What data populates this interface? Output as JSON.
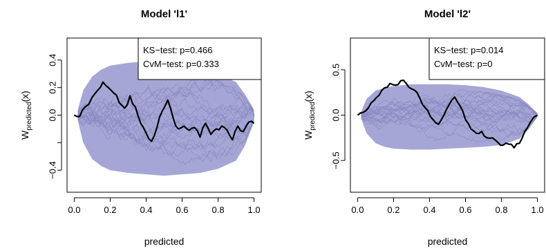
{
  "chart_data": [
    {
      "type": "line",
      "title": "Model 'l1'",
      "xlabel": "predicted",
      "ylabel_main": "W",
      "ylabel_sub": "predicted",
      "ylabel_tail": "(x)",
      "xlim": [
        -0.04,
        1.04
      ],
      "ylim": [
        -0.56,
        0.56
      ],
      "xticks": [
        0.0,
        0.2,
        0.4,
        0.6,
        0.8,
        1.0
      ],
      "xtick_labels": [
        "0.0",
        "0.2",
        "0.4",
        "0.6",
        "0.8",
        "1.0"
      ],
      "yticks": [
        -0.4,
        -0.2,
        0.0,
        0.2,
        0.4
      ],
      "ytick_labels": [
        "−0.4",
        "",
        "0.0",
        "0.2",
        "0.4"
      ],
      "annotations": [
        "KS−test: p=0.466",
        "CvM−test: p=0.333"
      ],
      "band_color": "#a6a6d6",
      "sim_color": "#8a8ac0",
      "observed_color": "#000000",
      "band": {
        "x": [
          0.02,
          0.05,
          0.1,
          0.15,
          0.2,
          0.3,
          0.4,
          0.5,
          0.6,
          0.7,
          0.8,
          0.9,
          0.95,
          1.0
        ],
        "upper": [
          0.04,
          0.18,
          0.28,
          0.33,
          0.36,
          0.38,
          0.39,
          0.39,
          0.37,
          0.34,
          0.3,
          0.24,
          0.15,
          0.04
        ],
        "lower": [
          -0.04,
          -0.2,
          -0.32,
          -0.37,
          -0.4,
          -0.42,
          -0.43,
          -0.44,
          -0.43,
          -0.42,
          -0.39,
          -0.33,
          -0.22,
          -0.05
        ]
      },
      "observed": {
        "x": [
          0.0,
          0.03,
          0.06,
          0.1,
          0.13,
          0.16,
          0.19,
          0.22,
          0.25,
          0.28,
          0.31,
          0.34,
          0.37,
          0.4,
          0.43,
          0.46,
          0.49,
          0.52,
          0.55,
          0.58,
          0.61,
          0.64,
          0.67,
          0.7,
          0.73,
          0.76,
          0.79,
          0.82,
          0.85,
          0.88,
          0.91,
          0.94,
          0.97,
          1.0
        ],
        "y": [
          0.0,
          -0.01,
          0.06,
          0.13,
          0.18,
          0.24,
          0.2,
          0.16,
          0.09,
          0.05,
          0.14,
          0.06,
          -0.06,
          -0.13,
          -0.19,
          -0.09,
          0.03,
          0.11,
          -0.02,
          -0.1,
          -0.08,
          -0.11,
          -0.09,
          -0.16,
          -0.06,
          -0.14,
          -0.1,
          -0.08,
          -0.11,
          -0.18,
          -0.08,
          -0.12,
          -0.05,
          -0.06
        ]
      }
    },
    {
      "type": "line",
      "title": "Model 'l2'",
      "xlabel": "predicted",
      "ylabel_main": "W",
      "ylabel_sub": "predicted",
      "ylabel_tail": "(x)",
      "xlim": [
        -0.04,
        1.04
      ],
      "ylim": [
        -0.85,
        0.85
      ],
      "xticks": [
        0.0,
        0.2,
        0.4,
        0.6,
        0.8,
        1.0
      ],
      "xtick_labels": [
        "0.0",
        "0.2",
        "0.4",
        "0.6",
        "0.8",
        "1.0"
      ],
      "yticks": [
        -0.5,
        0.0,
        0.5
      ],
      "ytick_labels": [
        "−0.5",
        "0.0",
        "0.5"
      ],
      "annotations": [
        "KS−test: p=0.014",
        "CvM−test: p=0"
      ],
      "band_color": "#a6a6d6",
      "sim_color": "#8a8ac0",
      "observed_color": "#000000",
      "band": {
        "x": [
          0.02,
          0.05,
          0.1,
          0.15,
          0.2,
          0.3,
          0.4,
          0.5,
          0.6,
          0.7,
          0.8,
          0.9,
          0.95,
          1.0
        ],
        "upper": [
          0.04,
          0.18,
          0.27,
          0.3,
          0.32,
          0.34,
          0.34,
          0.34,
          0.33,
          0.31,
          0.27,
          0.2,
          0.12,
          0.02
        ],
        "lower": [
          -0.04,
          -0.2,
          -0.31,
          -0.35,
          -0.37,
          -0.38,
          -0.38,
          -0.37,
          -0.36,
          -0.35,
          -0.33,
          -0.26,
          -0.16,
          -0.02
        ]
      },
      "observed": {
        "x": [
          0.0,
          0.03,
          0.06,
          0.09,
          0.12,
          0.15,
          0.18,
          0.21,
          0.24,
          0.27,
          0.3,
          0.33,
          0.36,
          0.39,
          0.42,
          0.45,
          0.48,
          0.51,
          0.54,
          0.57,
          0.6,
          0.63,
          0.66,
          0.69,
          0.72,
          0.75,
          0.78,
          0.81,
          0.84,
          0.87,
          0.9,
          0.93,
          0.96,
          1.0
        ],
        "y": [
          0.0,
          0.03,
          0.08,
          0.16,
          0.22,
          0.3,
          0.35,
          0.33,
          0.38,
          0.35,
          0.29,
          0.25,
          0.12,
          0.05,
          -0.05,
          -0.1,
          0.0,
          0.12,
          0.2,
          0.1,
          -0.05,
          -0.15,
          -0.2,
          -0.18,
          -0.25,
          -0.25,
          -0.3,
          -0.33,
          -0.32,
          -0.36,
          -0.31,
          -0.18,
          -0.08,
          0.0
        ]
      }
    }
  ]
}
